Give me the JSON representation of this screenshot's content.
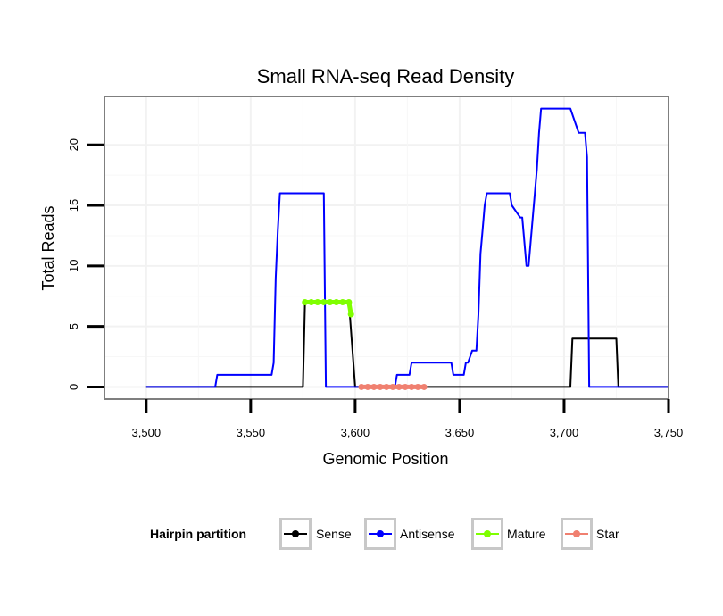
{
  "chart_data": {
    "type": "line",
    "title": "Small RNA-seq Read Density",
    "xlabel": "Genomic Position",
    "ylabel": "Total Reads",
    "xlim": [
      3480,
      3750
    ],
    "ylim": [
      -1,
      24
    ],
    "xticks": [
      3500,
      3550,
      3600,
      3650,
      3700,
      3750
    ],
    "xtick_labels": [
      "3,500",
      "3,550",
      "3,600",
      "3,650",
      "3,700",
      "3,750"
    ],
    "yticks": [
      0,
      5,
      10,
      15,
      20
    ],
    "ytick_labels": [
      "0",
      "5",
      "10",
      "15",
      "20"
    ],
    "grid": true,
    "legend": {
      "title": "Hairpin partition",
      "position": "bottom",
      "entries": [
        "Sense",
        "Antisense",
        "Mature",
        "Star"
      ]
    },
    "series": [
      {
        "name": "Sense",
        "color": "#000000",
        "x": [
          3500,
          3575,
          3576,
          3597,
          3600,
          3703,
          3704,
          3725,
          3726,
          3750
        ],
        "y": [
          0,
          0,
          7,
          7,
          0,
          0,
          4,
          4,
          0,
          0
        ]
      },
      {
        "name": "Antisense",
        "color": "#0000ff",
        "x": [
          3500,
          3533,
          3534,
          3560,
          3561,
          3562,
          3563,
          3564,
          3585,
          3586,
          3619,
          3620,
          3626,
          3627,
          3646,
          3647,
          3652,
          3653,
          3654,
          3656,
          3658,
          3659,
          3660,
          3661,
          3662,
          3663,
          3664,
          3665,
          3674,
          3675,
          3679,
          3680,
          3682,
          3683,
          3686,
          3687,
          3688,
          3689,
          3690,
          3701,
          3703,
          3707,
          3710,
          3711,
          3712,
          3750
        ],
        "y": [
          0,
          0,
          1,
          1,
          2,
          9,
          13,
          16,
          16,
          0,
          0,
          1,
          1,
          2,
          2,
          1,
          1,
          2,
          2,
          3,
          3,
          6,
          11,
          13,
          15,
          16,
          16,
          16,
          16,
          15,
          14,
          14,
          10,
          10,
          16,
          18,
          21,
          23,
          23,
          23,
          23,
          21,
          21,
          19,
          0,
          0
        ]
      },
      {
        "name": "Mature",
        "color": "#7fff00",
        "x": [
          3576,
          3579,
          3582,
          3585,
          3588,
          3591,
          3594,
          3597,
          3598
        ],
        "y": [
          7,
          7,
          7,
          7,
          7,
          7,
          7,
          7,
          6
        ]
      },
      {
        "name": "Star",
        "color": "#f08070",
        "x": [
          3603,
          3606,
          3609,
          3612,
          3615,
          3618,
          3621,
          3624,
          3627,
          3630,
          3633
        ],
        "y": [
          0,
          0,
          0,
          0,
          0,
          0,
          0,
          0,
          0,
          0,
          0
        ]
      }
    ]
  }
}
